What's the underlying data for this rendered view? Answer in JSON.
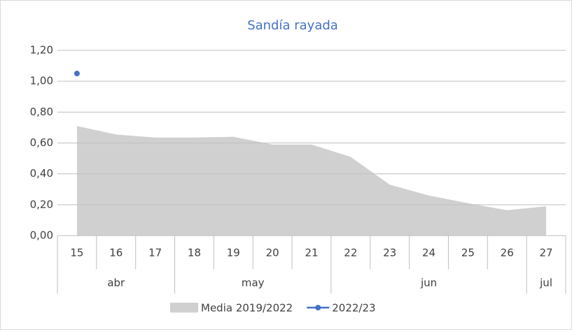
{
  "chart_data": {
    "type": "area_line",
    "title": "Sandía rayada",
    "categories": [
      "15",
      "16",
      "17",
      "18",
      "19",
      "20",
      "21",
      "22",
      "23",
      "24",
      "25",
      "26",
      "27"
    ],
    "groups": [
      {
        "label": "abr",
        "count": 3
      },
      {
        "label": "may",
        "count": 4
      },
      {
        "label": "jun",
        "count": 5
      },
      {
        "label": "jul",
        "count": 1
      }
    ],
    "series": [
      {
        "name": "Media 2019/2022",
        "type": "area",
        "color": "#d0d0d0",
        "values": [
          0.71,
          0.655,
          0.635,
          0.635,
          0.64,
          0.59,
          0.59,
          0.51,
          0.33,
          0.26,
          0.21,
          0.165,
          0.19
        ]
      },
      {
        "name": "2022/23",
        "type": "line",
        "color": "#4472c4",
        "values": [
          1.05,
          null,
          null,
          null,
          null,
          null,
          null,
          null,
          null,
          null,
          null,
          null,
          null
        ]
      }
    ],
    "ylim": [
      0,
      1.2
    ],
    "yticks": [
      {
        "value": 0,
        "label": "0,00"
      },
      {
        "value": 0.2,
        "label": "0,20"
      },
      {
        "value": 0.4,
        "label": "0,40"
      },
      {
        "value": 0.6,
        "label": "0,60"
      },
      {
        "value": 0.8,
        "label": "0,80"
      },
      {
        "value": 1.0,
        "label": "1,00"
      },
      {
        "value": 1.2,
        "label": "1,20"
      }
    ],
    "grid": true,
    "legend": "bottom"
  }
}
